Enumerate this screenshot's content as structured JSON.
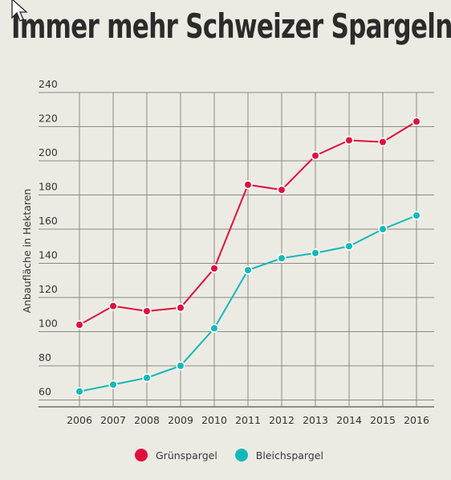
{
  "title": "Immer mehr Schweizer Spargeln",
  "chart_data": {
    "type": "line",
    "x": [
      "2006",
      "2007",
      "2008",
      "2009",
      "2010",
      "2011",
      "2012",
      "2013",
      "2014",
      "2015",
      "2016"
    ],
    "ylabel": "Anbaufläche in Hektaren",
    "ylim": [
      56,
      240
    ],
    "yticks": [
      60,
      80,
      100,
      120,
      140,
      160,
      180,
      200,
      220,
      240
    ],
    "grid": true,
    "legend_position": "bottom",
    "series": [
      {
        "name": "Grünspargel",
        "color": "#e0103c",
        "values": [
          104,
          115,
          112,
          114,
          137,
          186,
          183,
          203,
          212,
          211,
          223
        ]
      },
      {
        "name": "Bleichspargel",
        "color": "#13b9b9",
        "values": [
          65,
          69,
          73,
          80,
          102,
          136,
          143,
          146,
          150,
          160,
          168
        ]
      }
    ]
  }
}
